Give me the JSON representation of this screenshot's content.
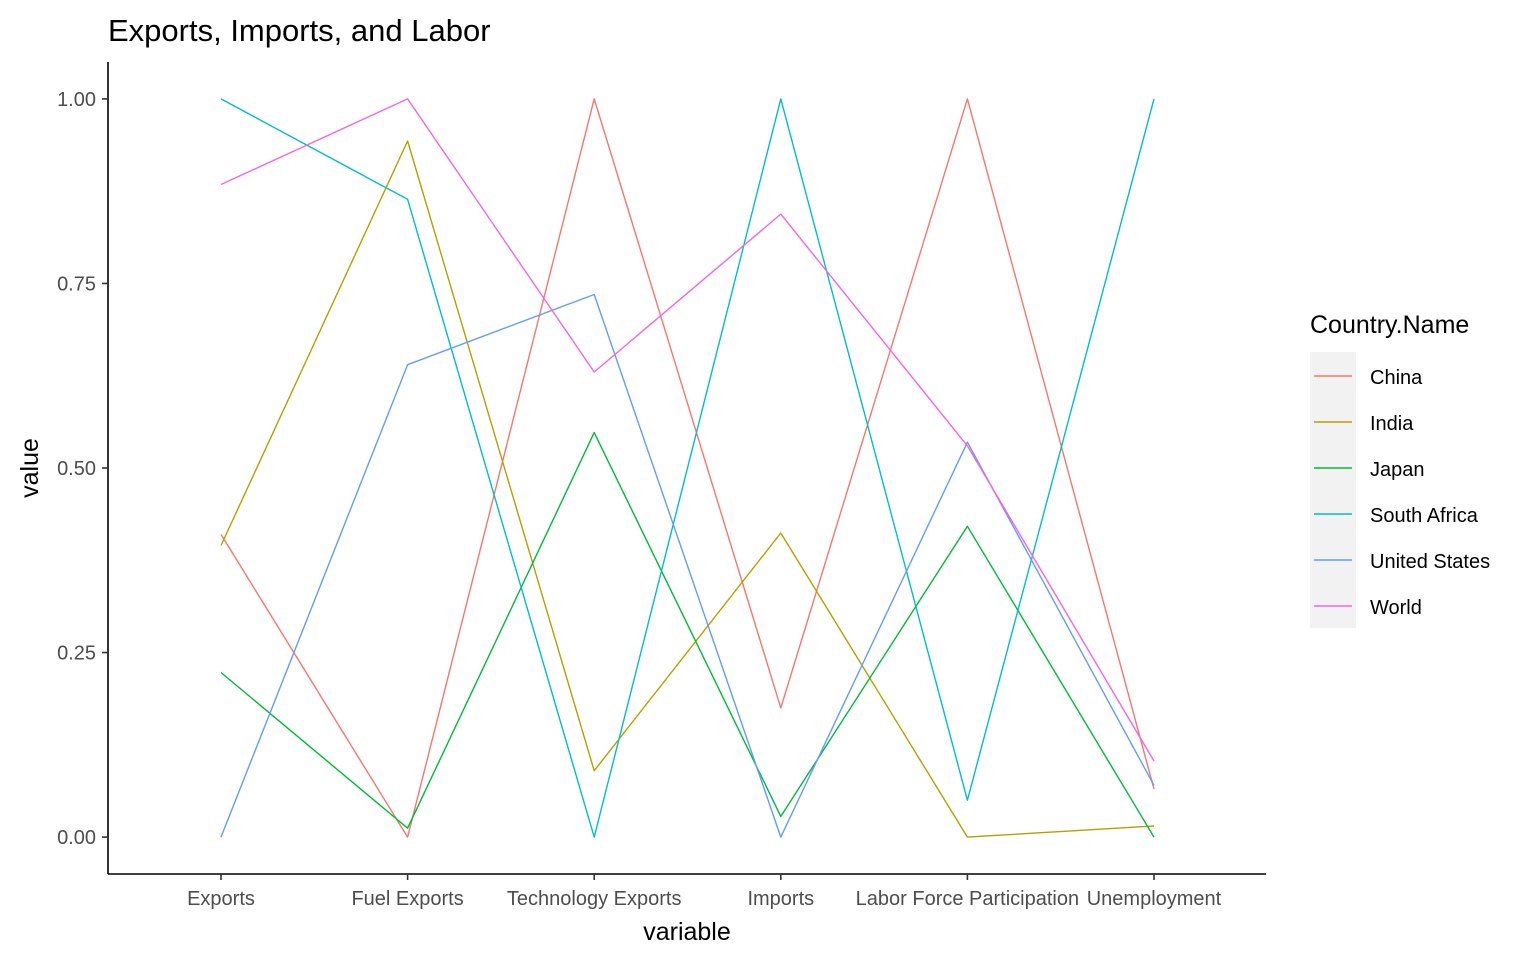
{
  "chart_data": {
    "type": "line",
    "title": "Exports, Imports, and Labor",
    "xlabel": "variable",
    "ylabel": "value",
    "ylim": [
      -0.05,
      1.05
    ],
    "yticks": [
      0.0,
      0.25,
      0.5,
      0.75,
      1.0
    ],
    "ytick_labels": [
      "0.00",
      "0.25",
      "0.50",
      "0.75",
      "1.00"
    ],
    "categories": [
      "Exports",
      "Fuel Exports",
      "Technology Exports",
      "Imports",
      "Labor Force Participation",
      "Unemployment"
    ],
    "legend": {
      "title": "Country.Name",
      "position": "right"
    },
    "grid": false,
    "series": [
      {
        "name": "China",
        "color": "#F8766D",
        "values": [
          0.41,
          0.0,
          1.0,
          0.175,
          1.0,
          0.065
        ]
      },
      {
        "name": "India",
        "color": "#B79F00",
        "values": [
          0.395,
          0.943,
          0.09,
          0.412,
          0.0,
          0.015
        ]
      },
      {
        "name": "Japan",
        "color": "#00BA38",
        "values": [
          0.223,
          0.012,
          0.548,
          0.028,
          0.421,
          0.0
        ]
      },
      {
        "name": "South Africa",
        "color": "#00BFC4",
        "values": [
          1.0,
          0.864,
          0.0,
          1.0,
          0.05,
          1.0
        ]
      },
      {
        "name": "United States",
        "color": "#619CFF",
        "values": [
          0.0,
          0.64,
          0.735,
          0.0,
          0.535,
          0.07
        ]
      },
      {
        "name": "World",
        "color": "#F564E3",
        "values": [
          0.884,
          1.0,
          0.63,
          0.844,
          0.53,
          0.103
        ]
      }
    ]
  }
}
